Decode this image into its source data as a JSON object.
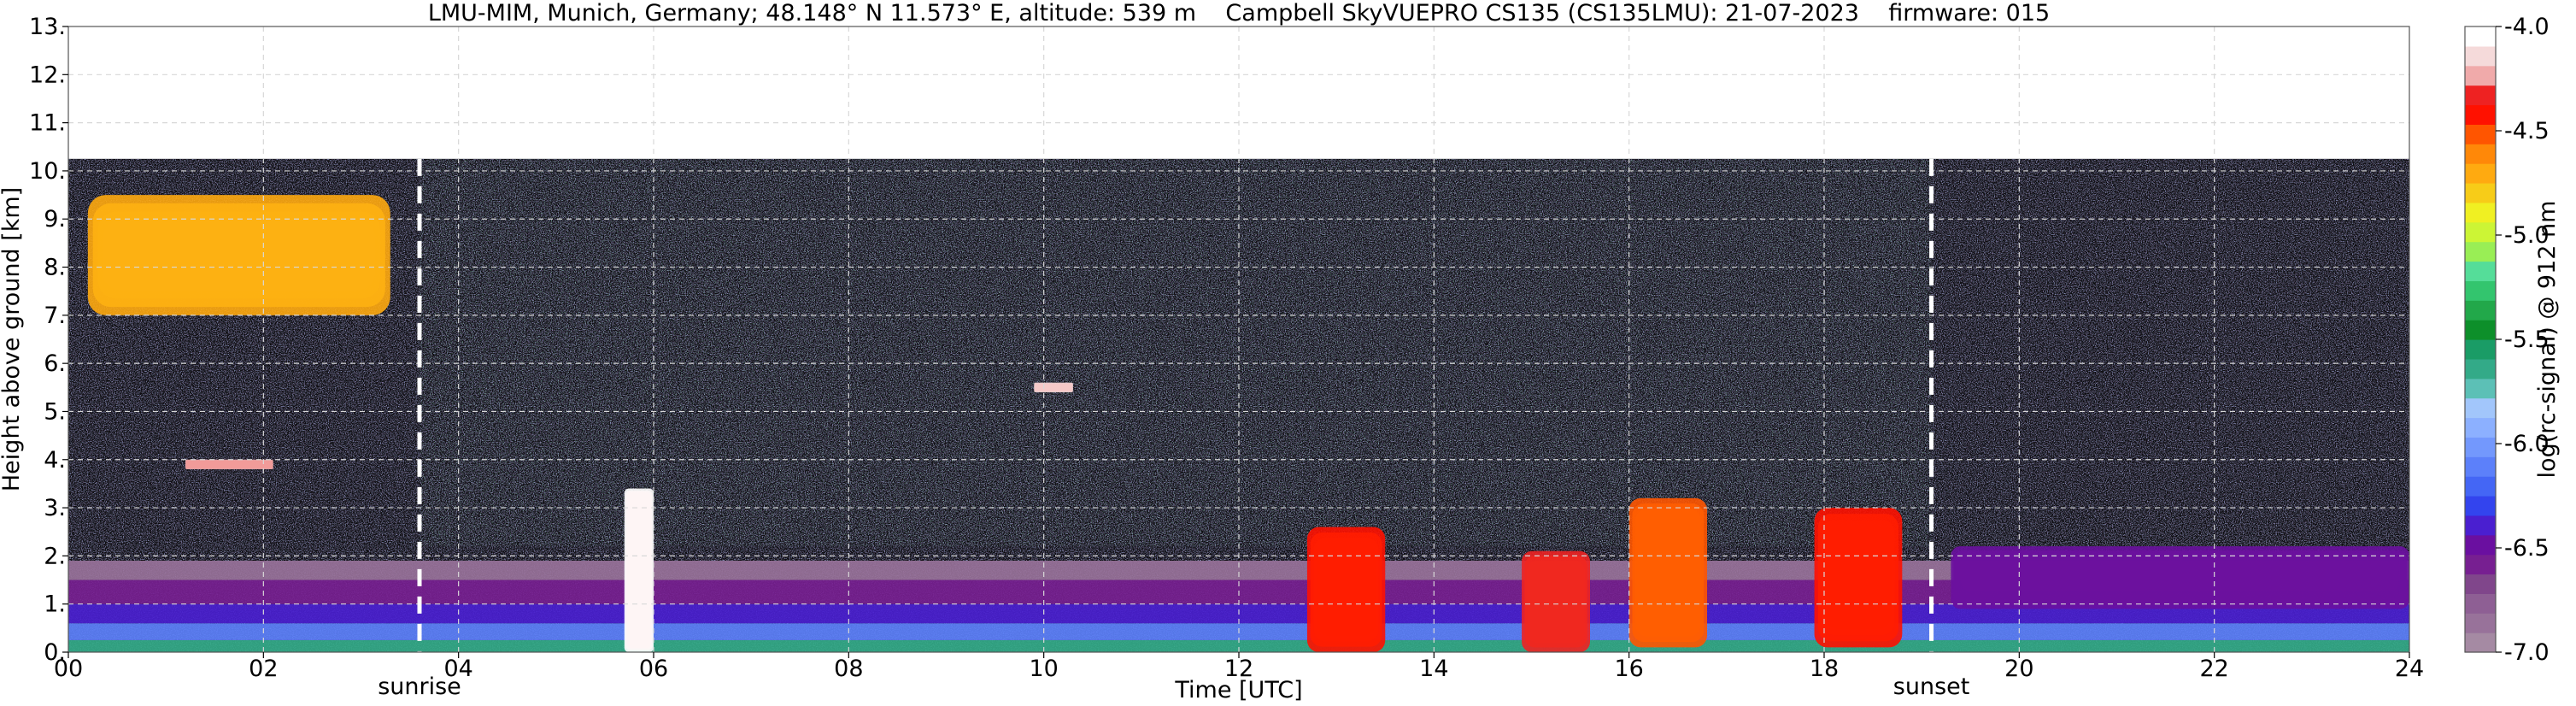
{
  "chart_data": {
    "type": "heatmap",
    "title": "LMU-MIM, Munich, Germany; 48.148° N 11.573° E, altitude: 539 m    Campbell SkyVUEPRO CS135 (CS135LMU): 21-07-2023    firmware: 015",
    "xlabel": "Time [UTC]",
    "ylabel": "Height above ground [km]",
    "xlim": [
      0,
      24
    ],
    "ylim": [
      0,
      13
    ],
    "xticks": [
      "00",
      "02",
      "04",
      "06",
      "08",
      "10",
      "12",
      "14",
      "16",
      "18",
      "20",
      "22",
      "24"
    ],
    "yticks": [
      "0.",
      "1.",
      "2.",
      "3.",
      "4.",
      "5.",
      "6.",
      "7.",
      "8.",
      "9.",
      "10.",
      "11.",
      "12.",
      "13."
    ],
    "grid": true,
    "data_top_km": 10.25,
    "markers": [
      {
        "label": "sunrise",
        "time": 3.6
      },
      {
        "label": "sunset",
        "time": 19.1
      }
    ],
    "colorbar": {
      "label": "log(rc-signal) @ 912 nm",
      "min": -7.0,
      "max": -4.0,
      "ticks": [
        "-4.0",
        "-4.5",
        "-5.0",
        "-5.5",
        "-6.0",
        "-6.5",
        "-7.0"
      ],
      "tick_values": [
        -4.0,
        -4.5,
        -5.0,
        -5.5,
        -6.0,
        -6.5,
        -7.0
      ],
      "colors": [
        "#a58aa3",
        "#98729a",
        "#8e5f94",
        "#80468b",
        "#771f91",
        "#6a0fa0",
        "#4a1fd0",
        "#3344ee",
        "#4466f5",
        "#5c80fa",
        "#7398fd",
        "#8cb0ff",
        "#a2c6fb",
        "#5cc0b6",
        "#33aa88",
        "#1a9c66",
        "#0d8f2a",
        "#22a84a",
        "#33c56e",
        "#55dd99",
        "#99ee55",
        "#ccf535",
        "#f0f022",
        "#f7cc18",
        "#ffaa10",
        "#ff8808",
        "#ff5500",
        "#ff1100",
        "#ee2222",
        "#f0aaaa",
        "#f5dada",
        "#ffffff"
      ]
    },
    "background_layer": [
      {
        "from_km": 0.0,
        "to_km": 0.25,
        "level": -5.6
      },
      {
        "from_km": 0.25,
        "to_km": 0.6,
        "level": -6.1
      },
      {
        "from_km": 0.6,
        "to_km": 1.0,
        "level": -6.4
      },
      {
        "from_km": 1.0,
        "to_km": 1.5,
        "level": -6.6
      },
      {
        "from_km": 1.5,
        "to_km": 1.9,
        "level": -6.85
      }
    ],
    "features": [
      {
        "name": "cirrus",
        "t0": 0.2,
        "t1": 3.3,
        "h0": 7.0,
        "h1": 9.5,
        "level": -4.7
      },
      {
        "name": "aerosol-layer",
        "t0": 1.2,
        "t1": 2.1,
        "h0": 3.8,
        "h1": 4.0,
        "level": -4.2
      },
      {
        "name": "cloud",
        "t0": 5.7,
        "t1": 6.0,
        "h0": 0.0,
        "h1": 3.4,
        "level": -4.0
      },
      {
        "name": "cloud",
        "t0": 12.7,
        "t1": 13.5,
        "h0": 0.0,
        "h1": 2.6,
        "level": -4.4
      },
      {
        "name": "cloud",
        "t0": 14.9,
        "t1": 15.6,
        "h0": 0.0,
        "h1": 2.1,
        "level": -4.3
      },
      {
        "name": "cloud",
        "t0": 16.0,
        "t1": 16.8,
        "h0": 0.1,
        "h1": 3.2,
        "level": -4.5
      },
      {
        "name": "cloud",
        "t0": 17.9,
        "t1": 18.8,
        "h0": 0.1,
        "h1": 3.0,
        "level": -4.4
      },
      {
        "name": "cloud",
        "t0": 9.9,
        "t1": 10.3,
        "h0": 5.4,
        "h1": 5.6,
        "level": -4.1
      },
      {
        "name": "aerosol-layer",
        "t0": 19.3,
        "t1": 24.0,
        "h0": 0.9,
        "h1": 2.2,
        "level": -6.5
      }
    ]
  }
}
